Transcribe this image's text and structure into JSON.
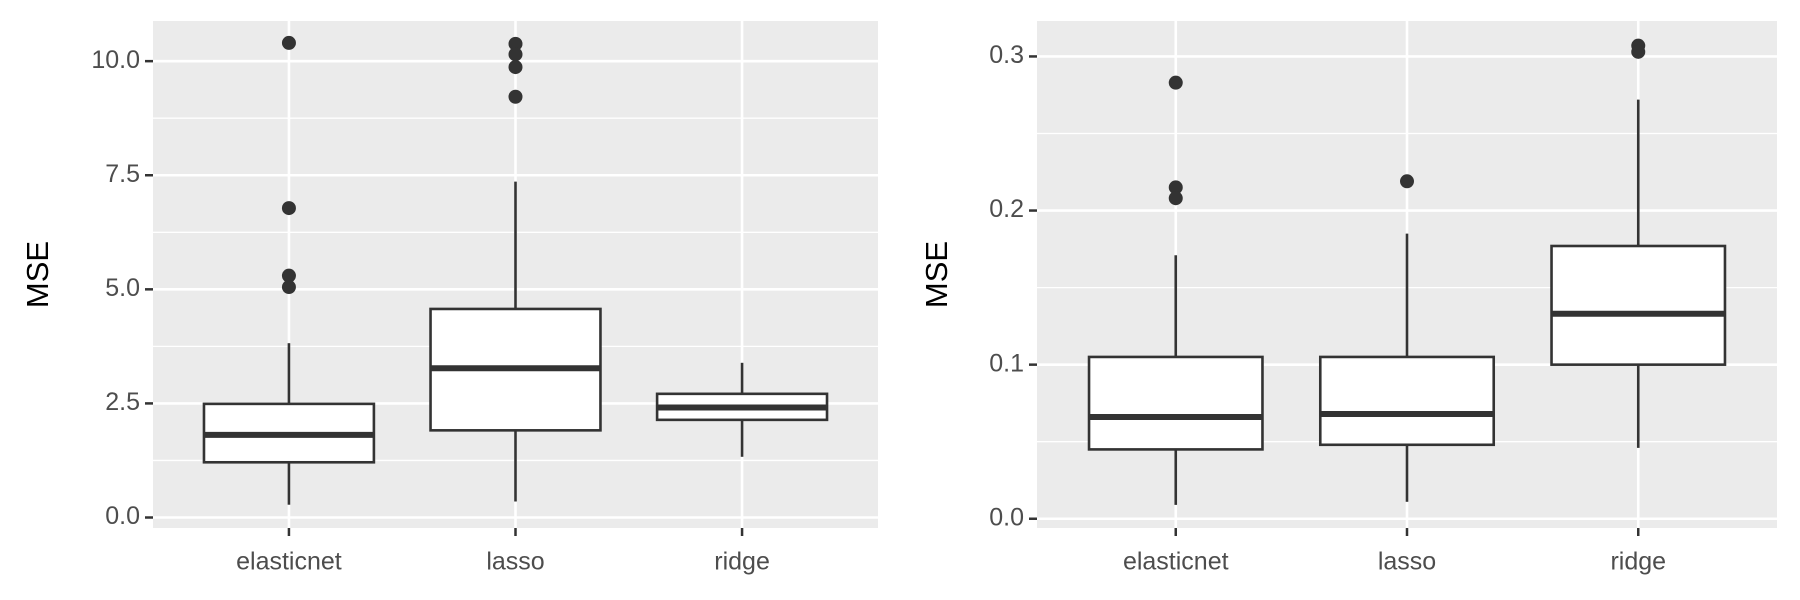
{
  "chart_data": [
    {
      "type": "box",
      "ylabel": "MSE",
      "categories": [
        "elasticnet",
        "lasso",
        "ridge"
      ],
      "series": [
        {
          "name": null,
          "color": "#ffffff",
          "boxes": [
            {
              "min": 0.28,
              "q1": 1.21,
              "median": 1.81,
              "q3": 2.49,
              "max": 3.82,
              "outliers": [
                10.4,
                6.78,
                5.3,
                5.05
              ]
            },
            {
              "min": 0.35,
              "q1": 1.91,
              "median": 3.27,
              "q3": 4.57,
              "max": 7.36,
              "outliers": [
                10.38,
                10.15,
                9.87,
                9.22
              ]
            },
            {
              "min": 1.33,
              "q1": 2.14,
              "median": 2.41,
              "q3": 2.71,
              "max": 3.39,
              "outliers": []
            }
          ]
        }
      ],
      "ylim": [
        -0.23,
        10.88
      ],
      "yticks": [
        {
          "value": 0,
          "label": "0.0"
        },
        2.5,
        {
          "value": 5,
          "label": "5.0"
        },
        7.5,
        {
          "value": 10,
          "label": "10.0"
        }
      ],
      "grid": true
    },
    {
      "type": "box",
      "ylabel": "MSE",
      "categories": [
        "elasticnet",
        "lasso",
        "ridge"
      ],
      "series": [
        {
          "name": null,
          "color": "#ffffff",
          "boxes": [
            {
              "min": 0.009,
              "q1": 0.045,
              "median": 0.066,
              "q3": 0.105,
              "max": 0.171,
              "outliers": [
                0.283,
                0.215,
                0.208
              ]
            },
            {
              "min": 0.011,
              "q1": 0.048,
              "median": 0.068,
              "q3": 0.105,
              "max": 0.185,
              "outliers": [
                0.219
              ]
            },
            {
              "min": 0.046,
              "q1": 0.1,
              "median": 0.133,
              "q3": 0.177,
              "max": 0.272,
              "outliers": [
                0.307,
                0.303
              ]
            }
          ]
        }
      ],
      "ylim": [
        -0.006,
        0.323
      ],
      "yticks": [
        {
          "value": 0,
          "label": "0.0"
        },
        0.1,
        0.2,
        0.3
      ],
      "grid": true
    }
  ]
}
